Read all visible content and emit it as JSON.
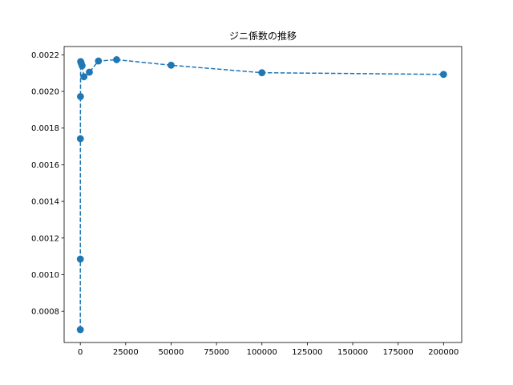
{
  "chart_data": {
    "type": "line",
    "title": "ジニ係数の推移",
    "xlabel": "",
    "ylabel": "",
    "xlim": [
      -8900,
      210000
    ],
    "ylim": [
      0.00063,
      0.002245
    ],
    "x_ticks": [
      0,
      25000,
      50000,
      75000,
      100000,
      125000,
      150000,
      175000,
      200000
    ],
    "y_ticks": [
      0.0008,
      0.001,
      0.0012,
      0.0014,
      0.0016,
      0.0018,
      0.002,
      0.0022
    ],
    "x_tick_labels": [
      "0",
      "25000",
      "50000",
      "75000",
      "100000",
      "125000",
      "150000",
      "175000",
      "200000"
    ],
    "y_tick_labels": [
      "0.0008",
      "0.0010",
      "0.0012",
      "0.0014",
      "0.0016",
      "0.0018",
      "0.0020",
      "0.0022"
    ],
    "grid": false,
    "series": [
      {
        "color": "#1f77b4",
        "line_style": "dashed",
        "marker": "circle",
        "x": [
          10,
          20,
          50,
          100,
          200,
          500,
          1000,
          2000,
          5000,
          10000,
          20000,
          50000,
          100000,
          200000
        ],
        "y": [
          0.0007,
          0.001085,
          0.001742,
          0.001972,
          0.002163,
          0.002155,
          0.00214,
          0.00208,
          0.002105,
          0.002166,
          0.002173,
          0.002143,
          0.002102,
          0.002093
        ]
      }
    ]
  }
}
